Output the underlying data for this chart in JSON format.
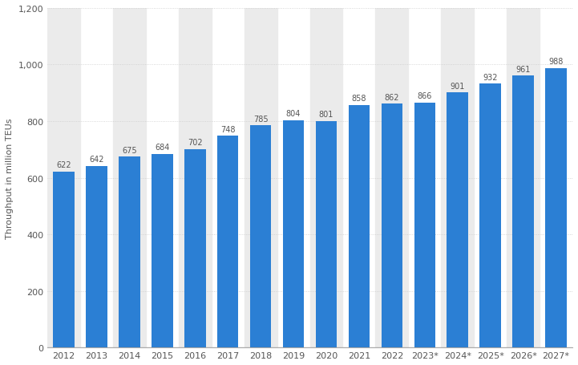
{
  "categories": [
    "2012",
    "2013",
    "2014",
    "2015",
    "2016",
    "2017",
    "2018",
    "2019",
    "2020",
    "2021",
    "2022",
    "2023*",
    "2024*",
    "2025*",
    "2026*",
    "2027*"
  ],
  "values": [
    622,
    642,
    675,
    684,
    702,
    748,
    785,
    804,
    801,
    858,
    862,
    866,
    901,
    932,
    961,
    988
  ],
  "bar_color": "#2B7FD4",
  "ylabel": "Throughput in million TEUs",
  "ylim": [
    0,
    1200
  ],
  "yticks": [
    0,
    200,
    400,
    600,
    800,
    1000,
    1200
  ],
  "ytick_labels": [
    "0",
    "200",
    "400",
    "600",
    "800",
    "1,000",
    "1,200"
  ],
  "background_color": "#ffffff",
  "plot_bg_color": "#ffffff",
  "col_band_color": "#ebebeb",
  "grid_color": "#cccccc",
  "label_fontsize": 8,
  "ylabel_fontsize": 8,
  "tick_fontsize": 8,
  "bar_label_fontsize": 7
}
